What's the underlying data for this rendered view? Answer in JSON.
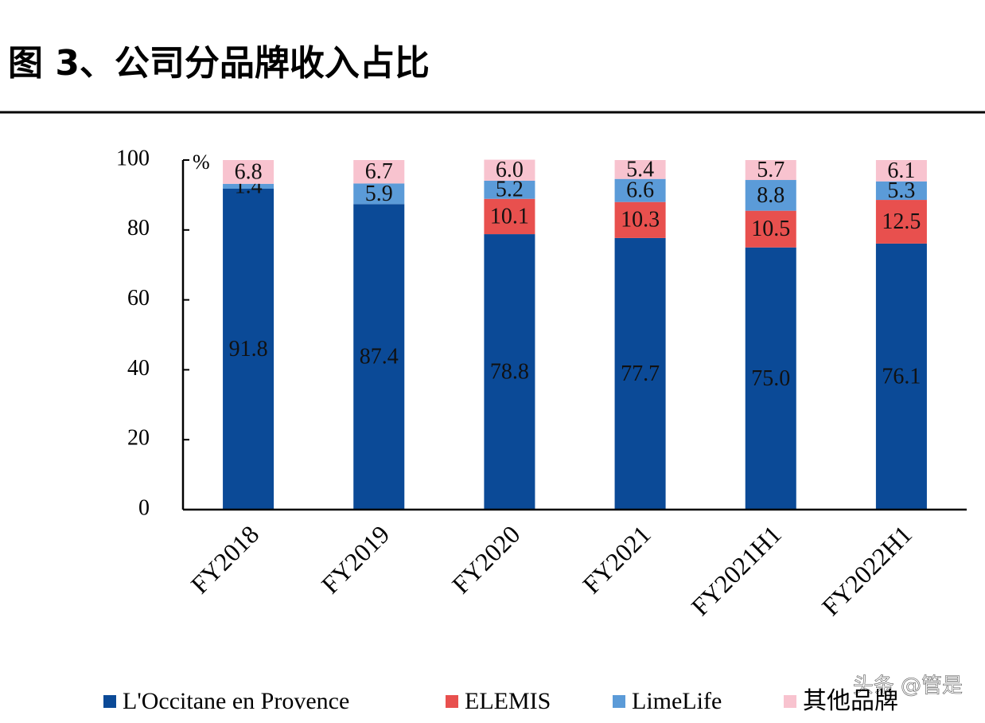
{
  "header": {
    "title": "图 3、公司分品牌收入占比"
  },
  "chart_data": {
    "type": "stacked_bar",
    "y_unit": "%",
    "categories": [
      "FY2018",
      "FY2019",
      "FY2020",
      "FY2021",
      "FY2021H1",
      "FY2022H1"
    ],
    "series": [
      {
        "name": "L'Occitane en Provence",
        "color": "#0b4a97",
        "values": [
          91.8,
          87.4,
          78.8,
          77.7,
          75.0,
          76.1
        ],
        "value_labels": [
          "91.8",
          "87.4",
          "78.8",
          "77.7",
          "75.0",
          "76.1"
        ]
      },
      {
        "name": "ELEMIS",
        "color": "#e8504e",
        "values": [
          null,
          null,
          10.1,
          10.3,
          10.5,
          12.5
        ],
        "value_labels": [
          null,
          null,
          "10.1",
          "10.3",
          "10.5",
          "12.5"
        ]
      },
      {
        "name": "LimeLife",
        "color": "#5b9bd8",
        "values": [
          1.4,
          5.9,
          5.2,
          6.6,
          8.8,
          5.3
        ],
        "value_labels": [
          "1.4",
          "5.9",
          "5.2",
          "6.6",
          "8.8",
          "5.3"
        ]
      },
      {
        "name": "其他品牌",
        "color": "#f8c3cf",
        "values": [
          6.8,
          6.7,
          6.0,
          5.4,
          5.7,
          6.1
        ],
        "value_labels": [
          "6.8",
          "6.7",
          "6.0",
          "5.4",
          "5.7",
          "6.1"
        ]
      }
    ],
    "ylim": [
      0,
      100
    ],
    "yticks": [
      0,
      20,
      40,
      60,
      80,
      100
    ],
    "grid": false
  },
  "watermark": "头条 @管是"
}
